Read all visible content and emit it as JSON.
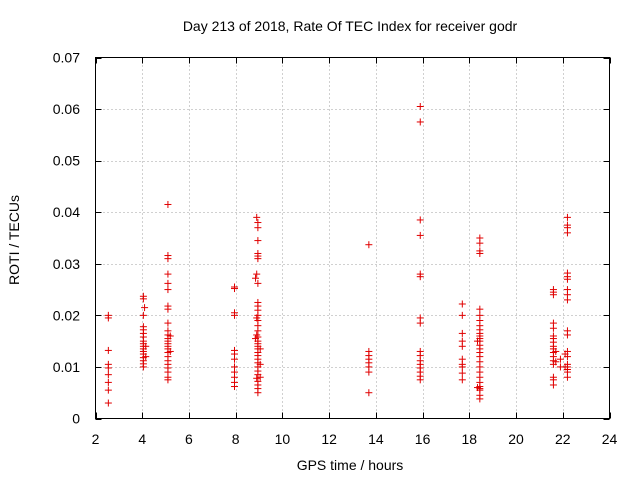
{
  "chart_data": {
    "type": "scatter",
    "title": "Day 213 of 2018, Rate Of TEC Index for receiver godr",
    "xlabel": "GPS time / hours",
    "ylabel": "ROTI / TECUs",
    "xlim": [
      2,
      24
    ],
    "ylim": [
      0,
      0.07
    ],
    "xticks": [
      2,
      4,
      6,
      8,
      10,
      12,
      14,
      16,
      18,
      20,
      22,
      24
    ],
    "yticks": [
      0,
      0.01,
      0.02,
      0.03,
      0.04,
      0.05,
      0.06,
      0.07
    ],
    "ytick_labels": [
      "0",
      "0.01",
      "0.02",
      "0.03",
      "0.04",
      "0.05",
      "0.06",
      "0.07"
    ],
    "marker_color": "#e00000",
    "grid": true,
    "series": [
      {
        "name": "ROTI",
        "points": [
          [
            2.55,
            0.02
          ],
          [
            2.55,
            0.0195
          ],
          [
            2.55,
            0.0132
          ],
          [
            2.55,
            0.0105
          ],
          [
            2.55,
            0.0098
          ],
          [
            2.55,
            0.0085
          ],
          [
            2.55,
            0.007
          ],
          [
            2.55,
            0.0055
          ],
          [
            2.55,
            0.003
          ],
          [
            4.05,
            0.0237
          ],
          [
            4.05,
            0.0232
          ],
          [
            4.1,
            0.0215
          ],
          [
            4.05,
            0.02
          ],
          [
            4.05,
            0.0178
          ],
          [
            4.05,
            0.0172
          ],
          [
            4.05,
            0.0165
          ],
          [
            4.05,
            0.0158
          ],
          [
            4.05,
            0.015
          ],
          [
            4.05,
            0.0145
          ],
          [
            4.05,
            0.014
          ],
          [
            4.05,
            0.0135
          ],
          [
            4.05,
            0.013
          ],
          [
            4.05,
            0.0125
          ],
          [
            4.05,
            0.0118
          ],
          [
            4.05,
            0.0112
          ],
          [
            4.05,
            0.0106
          ],
          [
            4.05,
            0.01
          ],
          [
            4.15,
            0.014
          ],
          [
            4.15,
            0.012
          ],
          [
            5.1,
            0.0415
          ],
          [
            5.1,
            0.0316
          ],
          [
            5.1,
            0.031
          ],
          [
            5.1,
            0.028
          ],
          [
            5.1,
            0.0262
          ],
          [
            5.1,
            0.025
          ],
          [
            5.1,
            0.0218
          ],
          [
            5.1,
            0.0212
          ],
          [
            5.1,
            0.0185
          ],
          [
            5.1,
            0.017
          ],
          [
            5.1,
            0.0162
          ],
          [
            5.1,
            0.0155
          ],
          [
            5.1,
            0.015
          ],
          [
            5.1,
            0.0145
          ],
          [
            5.1,
            0.014
          ],
          [
            5.1,
            0.0135
          ],
          [
            5.1,
            0.0128
          ],
          [
            5.1,
            0.012
          ],
          [
            5.1,
            0.0112
          ],
          [
            5.1,
            0.0105
          ],
          [
            5.1,
            0.0098
          ],
          [
            5.1,
            0.009
          ],
          [
            5.1,
            0.008
          ],
          [
            5.1,
            0.0075
          ],
          [
            5.2,
            0.016
          ],
          [
            5.2,
            0.013
          ],
          [
            7.95,
            0.0255
          ],
          [
            7.95,
            0.0252
          ],
          [
            7.95,
            0.0205
          ],
          [
            7.95,
            0.02
          ],
          [
            7.95,
            0.0132
          ],
          [
            7.95,
            0.0125
          ],
          [
            7.95,
            0.0115
          ],
          [
            7.95,
            0.01
          ],
          [
            7.95,
            0.009
          ],
          [
            7.95,
            0.008
          ],
          [
            7.95,
            0.007
          ],
          [
            7.95,
            0.0062
          ],
          [
            8.9,
            0.039
          ],
          [
            8.95,
            0.038
          ],
          [
            8.95,
            0.037
          ],
          [
            8.95,
            0.0345
          ],
          [
            8.95,
            0.032
          ],
          [
            8.95,
            0.0315
          ],
          [
            8.95,
            0.031
          ],
          [
            8.9,
            0.028
          ],
          [
            8.85,
            0.0272
          ],
          [
            8.95,
            0.0262
          ],
          [
            8.95,
            0.0225
          ],
          [
            8.95,
            0.0218
          ],
          [
            8.95,
            0.021
          ],
          [
            8.95,
            0.02
          ],
          [
            8.9,
            0.0195
          ],
          [
            8.95,
            0.019
          ],
          [
            8.95,
            0.018
          ],
          [
            8.95,
            0.017
          ],
          [
            8.9,
            0.0162
          ],
          [
            8.95,
            0.0158
          ],
          [
            8.85,
            0.0155
          ],
          [
            8.95,
            0.015
          ],
          [
            8.95,
            0.0145
          ],
          [
            8.95,
            0.014
          ],
          [
            8.95,
            0.0135
          ],
          [
            8.95,
            0.0128
          ],
          [
            8.95,
            0.0122
          ],
          [
            8.95,
            0.0115
          ],
          [
            8.95,
            0.0108
          ],
          [
            8.95,
            0.01
          ],
          [
            8.95,
            0.0092
          ],
          [
            8.95,
            0.0085
          ],
          [
            8.9,
            0.0078
          ],
          [
            8.95,
            0.0072
          ],
          [
            8.95,
            0.0065
          ],
          [
            8.95,
            0.0058
          ],
          [
            8.95,
            0.005
          ],
          [
            9.05,
            0.0135
          ],
          [
            9.05,
            0.0105
          ],
          [
            9.05,
            0.008
          ],
          [
            13.7,
            0.0337
          ],
          [
            13.7,
            0.013
          ],
          [
            13.7,
            0.0122
          ],
          [
            13.7,
            0.0115
          ],
          [
            13.7,
            0.0108
          ],
          [
            13.7,
            0.01
          ],
          [
            13.7,
            0.009
          ],
          [
            13.7,
            0.005
          ],
          [
            15.9,
            0.0605
          ],
          [
            15.9,
            0.0575
          ],
          [
            15.9,
            0.0385
          ],
          [
            15.9,
            0.0355
          ],
          [
            15.9,
            0.028
          ],
          [
            15.9,
            0.0275
          ],
          [
            15.9,
            0.0195
          ],
          [
            15.9,
            0.0185
          ],
          [
            15.9,
            0.013
          ],
          [
            15.9,
            0.0122
          ],
          [
            15.9,
            0.0112
          ],
          [
            15.9,
            0.0105
          ],
          [
            15.9,
            0.0098
          ],
          [
            15.9,
            0.009
          ],
          [
            15.9,
            0.0082
          ],
          [
            15.9,
            0.0075
          ],
          [
            17.7,
            0.0222
          ],
          [
            17.7,
            0.02
          ],
          [
            17.7,
            0.0165
          ],
          [
            17.7,
            0.015
          ],
          [
            17.7,
            0.014
          ],
          [
            17.7,
            0.0115
          ],
          [
            17.7,
            0.0105
          ],
          [
            17.7,
            0.01
          ],
          [
            17.7,
            0.0088
          ],
          [
            17.7,
            0.0075
          ],
          [
            18.45,
            0.035
          ],
          [
            18.45,
            0.034
          ],
          [
            18.45,
            0.0325
          ],
          [
            18.45,
            0.032
          ],
          [
            18.45,
            0.0212
          ],
          [
            18.45,
            0.02
          ],
          [
            18.45,
            0.019
          ],
          [
            18.45,
            0.018
          ],
          [
            18.45,
            0.0172
          ],
          [
            18.45,
            0.0165
          ],
          [
            18.45,
            0.016
          ],
          [
            18.45,
            0.0155
          ],
          [
            18.45,
            0.015
          ],
          [
            18.45,
            0.0142
          ],
          [
            18.45,
            0.0135
          ],
          [
            18.45,
            0.0128
          ],
          [
            18.45,
            0.012
          ],
          [
            18.45,
            0.011
          ],
          [
            18.45,
            0.01
          ],
          [
            18.45,
            0.009
          ],
          [
            18.45,
            0.008
          ],
          [
            18.45,
            0.007
          ],
          [
            18.45,
            0.0062
          ],
          [
            18.45,
            0.0058
          ],
          [
            18.45,
            0.0055
          ],
          [
            18.45,
            0.0045
          ],
          [
            18.45,
            0.0038
          ],
          [
            18.35,
            0.015
          ],
          [
            18.35,
            0.006
          ],
          [
            21.6,
            0.025
          ],
          [
            21.6,
            0.0245
          ],
          [
            21.6,
            0.024
          ],
          [
            21.6,
            0.0185
          ],
          [
            21.6,
            0.0175
          ],
          [
            21.6,
            0.016
          ],
          [
            21.6,
            0.0155
          ],
          [
            21.6,
            0.0148
          ],
          [
            21.6,
            0.014
          ],
          [
            21.6,
            0.0135
          ],
          [
            21.6,
            0.0128
          ],
          [
            21.6,
            0.012
          ],
          [
            21.6,
            0.0112
          ],
          [
            21.6,
            0.0105
          ],
          [
            21.6,
            0.008
          ],
          [
            21.6,
            0.0075
          ],
          [
            21.6,
            0.0065
          ],
          [
            21.7,
            0.013
          ],
          [
            21.7,
            0.011
          ],
          [
            21.9,
            0.0115
          ],
          [
            21.9,
            0.01
          ],
          [
            22.2,
            0.039
          ],
          [
            22.2,
            0.0375
          ],
          [
            22.2,
            0.037
          ],
          [
            22.2,
            0.036
          ],
          [
            22.2,
            0.0282
          ],
          [
            22.2,
            0.0275
          ],
          [
            22.2,
            0.027
          ],
          [
            22.2,
            0.025
          ],
          [
            22.2,
            0.024
          ],
          [
            22.2,
            0.023
          ],
          [
            22.2,
            0.017
          ],
          [
            22.2,
            0.0162
          ],
          [
            22.2,
            0.013
          ],
          [
            22.2,
            0.012
          ],
          [
            22.2,
            0.0105
          ],
          [
            22.2,
            0.01
          ],
          [
            22.2,
            0.0095
          ],
          [
            22.2,
            0.009
          ],
          [
            22.2,
            0.008
          ],
          [
            22.1,
            0.0125
          ],
          [
            22.1,
            0.01
          ]
        ]
      }
    ]
  }
}
